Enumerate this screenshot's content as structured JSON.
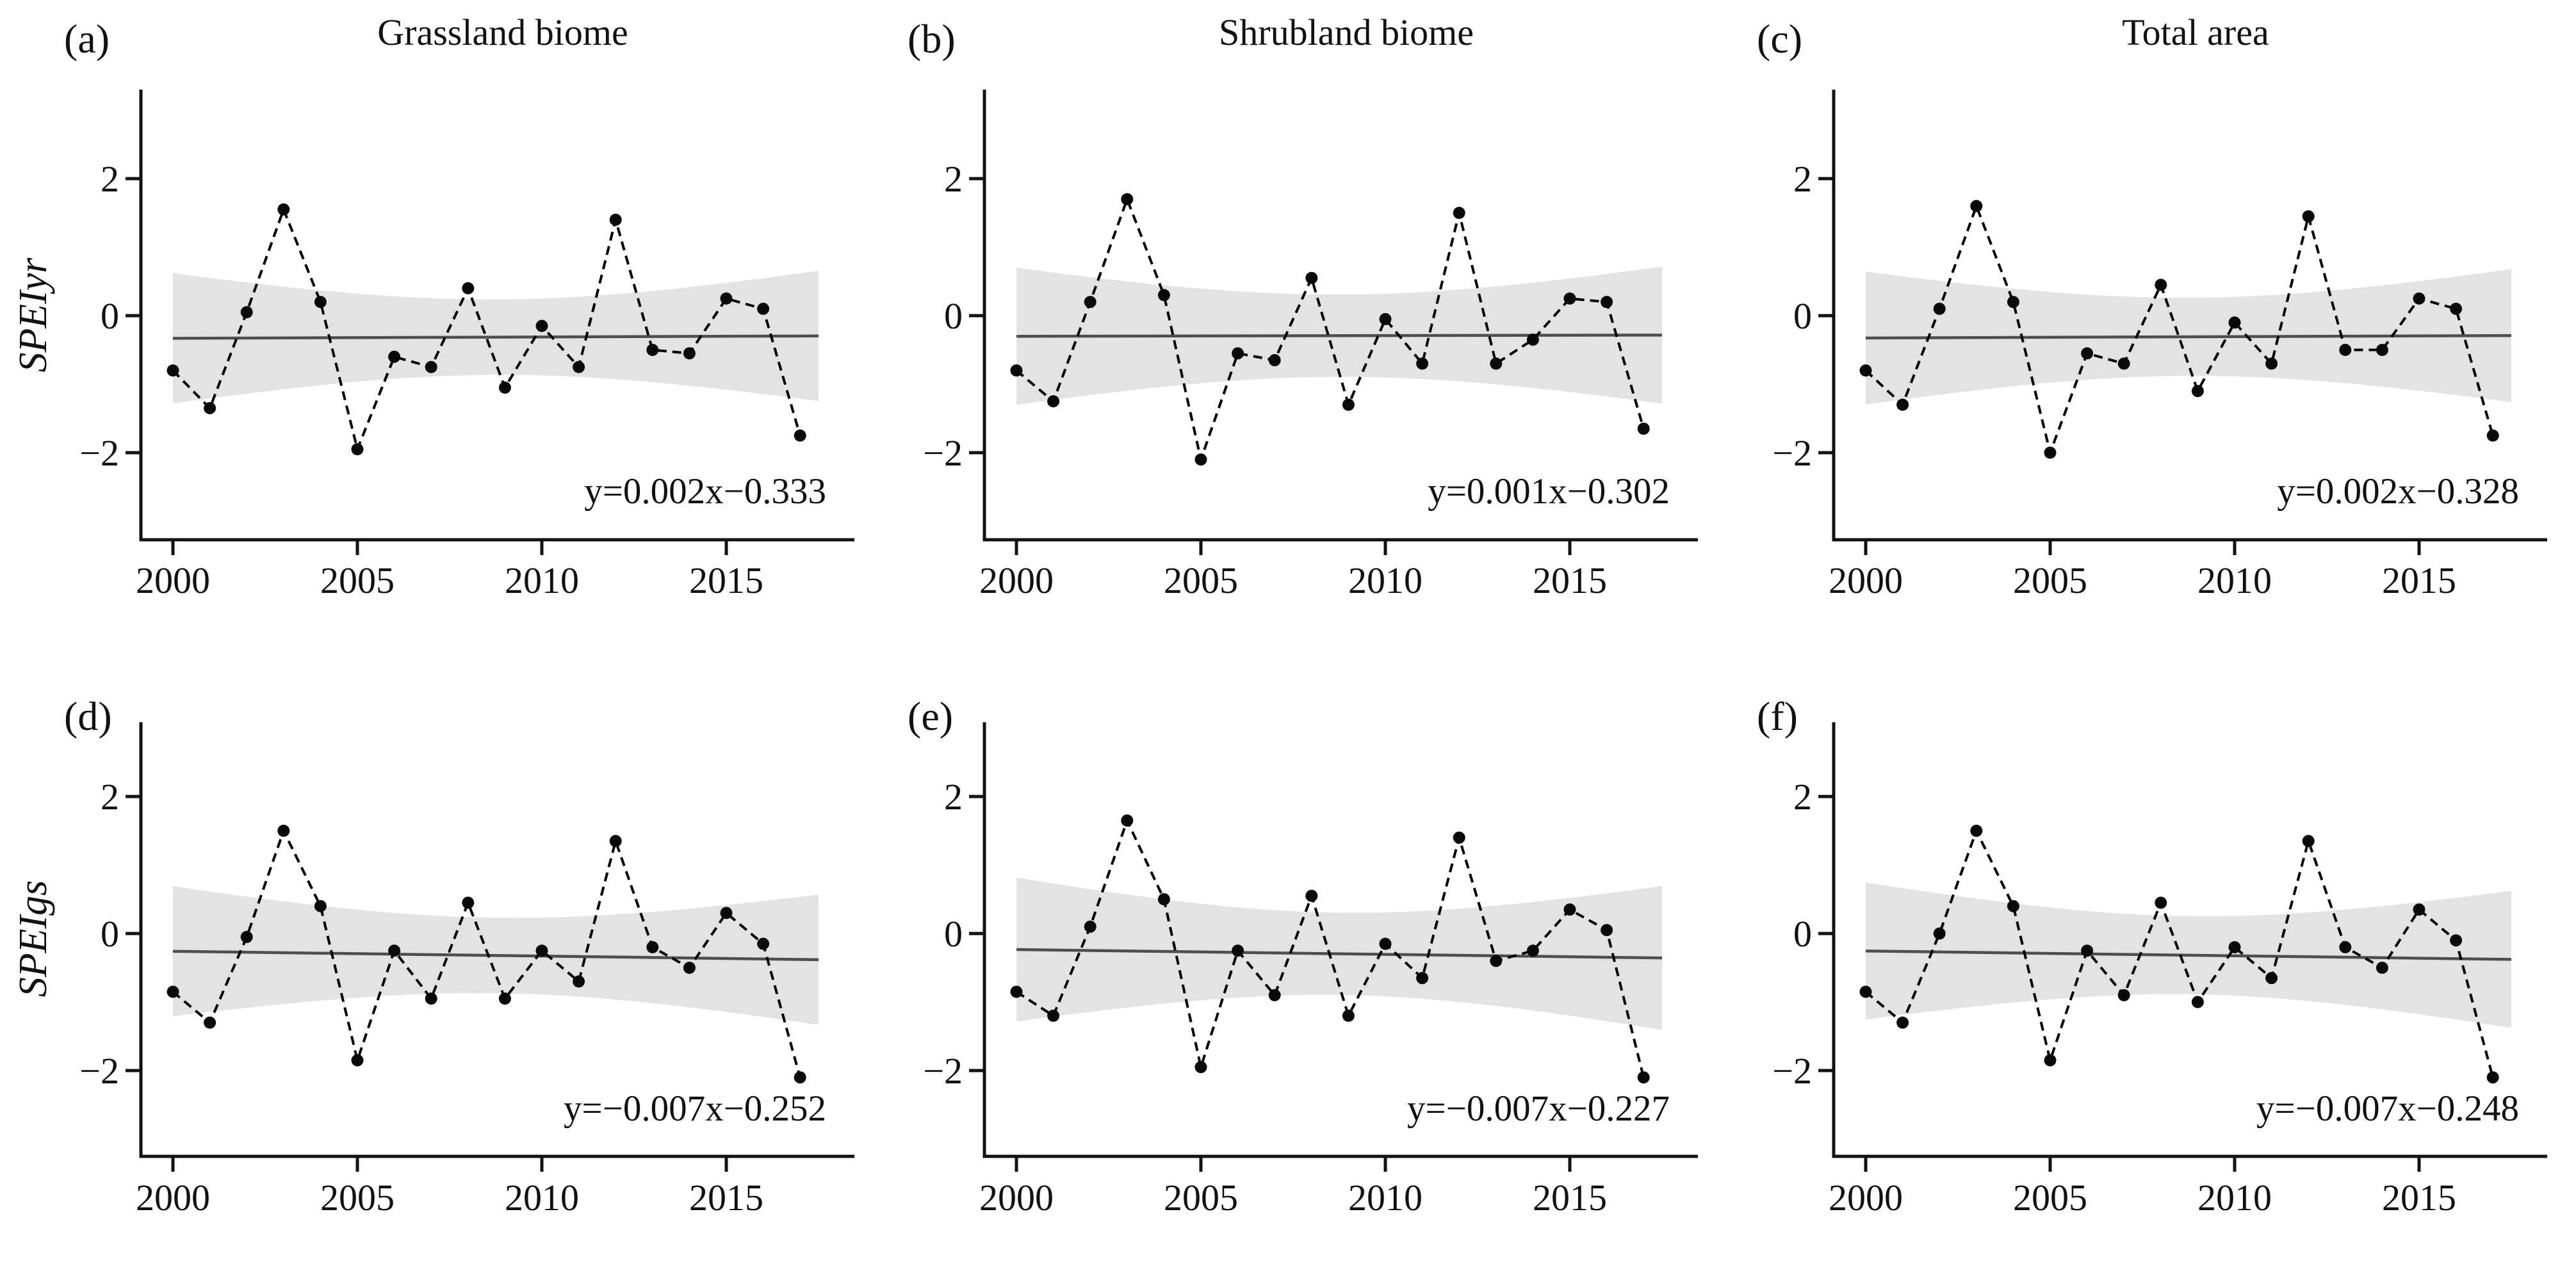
{
  "figure": {
    "column_titles": [
      "Grassland biome",
      "Shrubland biome",
      "Total area"
    ],
    "row_axis_labels": [
      "SPEIyr",
      "SPEIgs"
    ]
  },
  "colors": {
    "background": "#ffffff",
    "confidence_band": "#e3e3e3",
    "trend_line": "#4e4e4e",
    "series_line": "#000000",
    "marker": "#0a0a0a",
    "axis": "#111111",
    "text": "#111111"
  },
  "chart_data": {
    "type": "line",
    "x": [
      2000,
      2001,
      2002,
      2003,
      2004,
      2005,
      2006,
      2007,
      2008,
      2009,
      2010,
      2011,
      2012,
      2013,
      2014,
      2015,
      2016,
      2017
    ],
    "xlabel": "",
    "x_ticks": [
      2000,
      2005,
      2010,
      2015
    ],
    "x_tick_labels": [
      "2000",
      "2005",
      "2010",
      "2015"
    ],
    "y_ticks": [
      2,
      0,
      -2
    ],
    "y_tick_labels": [
      "2",
      "0",
      "−2"
    ],
    "x_range": [
      1999.1,
      2018.3
    ],
    "y_range": [
      -3.3,
      3.3
    ],
    "grid": false,
    "legend": false,
    "band_x_range": [
      2000,
      2017.5
    ],
    "trend_x_origin_year": 1999,
    "panels": [
      {
        "panel": "(a)",
        "title": "Grassland biome",
        "y_axis_label": "SPEIyr",
        "equation": "y=0.002x−0.333",
        "trend": {
          "slope": 0.002,
          "intercept": -0.333
        },
        "confidence_band": {
          "half_width_mid": 0.55,
          "half_width_end": 0.95
        },
        "values": [
          -0.8,
          -1.35,
          0.05,
          1.55,
          0.2,
          -1.95,
          -0.6,
          -0.75,
          0.4,
          -1.05,
          -0.15,
          -0.75,
          1.4,
          -0.5,
          -0.55,
          0.25,
          0.1,
          -1.75
        ]
      },
      {
        "panel": "(b)",
        "title": "Shrubland biome",
        "equation": "y=0.001x−0.302",
        "trend": {
          "slope": 0.001,
          "intercept": -0.302
        },
        "confidence_band": {
          "half_width_mid": 0.6,
          "half_width_end": 1.0
        },
        "values": [
          -0.8,
          -1.25,
          0.2,
          1.7,
          0.3,
          -2.1,
          -0.55,
          -0.65,
          0.55,
          -1.3,
          -0.05,
          -0.7,
          1.5,
          -0.7,
          -0.35,
          0.25,
          0.2,
          -1.65
        ]
      },
      {
        "panel": "(c)",
        "title": "Total area",
        "equation": "y=0.002x−0.328",
        "trend": {
          "slope": 0.002,
          "intercept": -0.328
        },
        "confidence_band": {
          "half_width_mid": 0.57,
          "half_width_end": 0.97
        },
        "values": [
          -0.8,
          -1.3,
          0.1,
          1.6,
          0.2,
          -2.0,
          -0.55,
          -0.7,
          0.45,
          -1.1,
          -0.1,
          -0.7,
          1.45,
          -0.5,
          -0.5,
          0.25,
          0.1,
          -1.75
        ]
      },
      {
        "panel": "(d)",
        "y_axis_label": "SPEIgs",
        "equation": "y=−0.007x−0.252",
        "trend": {
          "slope": -0.007,
          "intercept": -0.252
        },
        "confidence_band": {
          "half_width_mid": 0.55,
          "half_width_end": 0.95
        },
        "values": [
          -0.85,
          -1.3,
          -0.05,
          1.5,
          0.4,
          -1.85,
          -0.25,
          -0.95,
          0.45,
          -0.95,
          -0.25,
          -0.7,
          1.35,
          -0.2,
          -0.5,
          0.3,
          -0.15,
          -2.1
        ]
      },
      {
        "panel": "(e)",
        "equation": "y=−0.007x−0.227",
        "trend": {
          "slope": -0.007,
          "intercept": -0.227
        },
        "confidence_band": {
          "half_width_mid": 0.6,
          "half_width_end": 1.05
        },
        "values": [
          -0.85,
          -1.2,
          0.1,
          1.65,
          0.5,
          -1.95,
          -0.25,
          -0.9,
          0.55,
          -1.2,
          -0.15,
          -0.65,
          1.4,
          -0.4,
          -0.25,
          0.35,
          0.05,
          -2.1
        ]
      },
      {
        "panel": "(f)",
        "equation": "y=−0.007x−0.248",
        "trend": {
          "slope": -0.007,
          "intercept": -0.248
        },
        "confidence_band": {
          "half_width_mid": 0.57,
          "half_width_end": 1.0
        },
        "values": [
          -0.85,
          -1.3,
          0.0,
          1.5,
          0.4,
          -1.85,
          -0.25,
          -0.9,
          0.45,
          -1.0,
          -0.2,
          -0.65,
          1.35,
          -0.2,
          -0.5,
          0.35,
          -0.1,
          -2.1
        ]
      }
    ]
  }
}
